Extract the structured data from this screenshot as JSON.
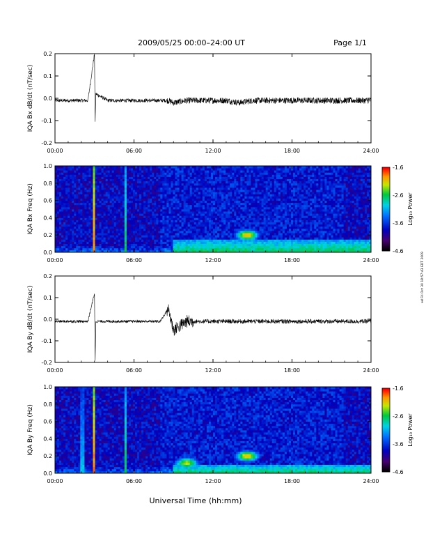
{
  "header": {
    "title": "2009/05/25  00:00–24:00 UT",
    "page": "Page 1/1"
  },
  "side_stamp": "ed Fri Oct 30 18:57:43 EDT 2009",
  "xlabel": "Universal Time (hh:mm)",
  "chart_data": [
    {
      "type": "line",
      "ylabel": "IQA Bx dB/dt (nT/sec)",
      "xlim": [
        0,
        24
      ],
      "ylim": [
        -0.2,
        0.2
      ],
      "xticks": [
        "00:00",
        "06:00",
        "12:00",
        "18:00",
        "24:00"
      ],
      "yticks": [
        "-0.2",
        "-0.1",
        "0.0",
        "0.1",
        "0.2"
      ],
      "series": [
        {
          "x": [
            0,
            1,
            2,
            2.5,
            3.0,
            3.05,
            3.1,
            4,
            5,
            6,
            7,
            8,
            8.6,
            9,
            10,
            11,
            12,
            13,
            14,
            15,
            16,
            17,
            18,
            19,
            20,
            21,
            22,
            23,
            24
          ],
          "y": [
            -0.01,
            -0.01,
            -0.01,
            -0.01,
            0.2,
            -0.11,
            0.02,
            -0.01,
            -0.01,
            -0.01,
            -0.01,
            -0.01,
            -0.01,
            -0.02,
            -0.01,
            -0.01,
            -0.01,
            -0.01,
            -0.02,
            -0.01,
            -0.01,
            -0.01,
            -0.01,
            -0.01,
            -0.01,
            -0.01,
            -0.01,
            -0.01,
            -0.01
          ]
        }
      ]
    },
    {
      "type": "heatmap",
      "ylabel": "IQA Bx Freq (Hz)",
      "xlim": [
        0,
        24
      ],
      "ylim": [
        0.0,
        1.0
      ],
      "xticks": [
        "00:00",
        "06:00",
        "12:00",
        "18:00",
        "24:00"
      ],
      "yticks": [
        "0.0",
        "0.2",
        "0.4",
        "0.6",
        "0.8",
        "1.0"
      ],
      "colorbar": {
        "label": "Log₁₀ Power",
        "range": [
          -4.6,
          -1.6
        ],
        "ticks": [
          "-1.6",
          "-2.6",
          "-3.6",
          "-4.6"
        ]
      },
      "features": [
        {
          "kind": "vertical-line",
          "time": 3.0,
          "level": -1.8
        },
        {
          "kind": "vertical-line",
          "time": 5.4,
          "level": -2.6
        },
        {
          "kind": "blob",
          "time": 14.6,
          "freq": 0.2,
          "level": -2.0
        },
        {
          "kind": "low-freq-band",
          "time_start": 9.0,
          "time_end": 24.0,
          "freq_max": 0.15,
          "level": -2.6
        }
      ]
    },
    {
      "type": "line",
      "ylabel": "IQA By dB/dt (nT/sec)",
      "xlim": [
        0,
        24
      ],
      "ylim": [
        -0.2,
        0.2
      ],
      "xticks": [
        "00:00",
        "06:00",
        "12:00",
        "18:00",
        "24:00"
      ],
      "yticks": [
        "-0.2",
        "-0.1",
        "0.0",
        "0.1",
        "0.2"
      ],
      "series": [
        {
          "x": [
            0,
            1,
            2,
            2.5,
            3.0,
            3.05,
            3.1,
            4,
            5,
            6,
            7,
            8,
            8.6,
            9,
            10,
            11,
            12,
            13,
            14,
            15,
            16,
            17,
            18,
            19,
            20,
            21,
            22,
            23,
            24
          ],
          "y": [
            -0.01,
            -0.01,
            -0.01,
            -0.01,
            0.12,
            -0.2,
            -0.01,
            -0.01,
            -0.01,
            -0.01,
            -0.01,
            -0.01,
            0.05,
            -0.05,
            -0.01,
            -0.01,
            -0.01,
            -0.01,
            -0.01,
            -0.01,
            -0.01,
            -0.01,
            -0.01,
            -0.01,
            -0.01,
            -0.01,
            -0.01,
            -0.01,
            -0.01
          ]
        }
      ]
    },
    {
      "type": "heatmap",
      "ylabel": "IQA By Freq (Hz)",
      "xlim": [
        0,
        24
      ],
      "ylim": [
        0.0,
        1.0
      ],
      "xticks": [
        "00:00",
        "06:00",
        "12:00",
        "18:00",
        "24:00"
      ],
      "yticks": [
        "0.0",
        "0.2",
        "0.4",
        "0.6",
        "0.8",
        "1.0"
      ],
      "colorbar": {
        "label": "Log₁₀ Power",
        "range": [
          -4.6,
          -1.6
        ],
        "ticks": [
          "-1.6",
          "-2.6",
          "-3.6",
          "-4.6"
        ]
      },
      "features": [
        {
          "kind": "vertical-line",
          "time": 3.0,
          "level": -1.8
        },
        {
          "kind": "vertical-line",
          "time": 5.4,
          "level": -2.6
        },
        {
          "kind": "vertical-line",
          "time": 2.1,
          "level": -3.0
        },
        {
          "kind": "blob",
          "time": 10.0,
          "freq": 0.12,
          "level": -2.2
        },
        {
          "kind": "blob",
          "time": 14.6,
          "freq": 0.2,
          "level": -2.0
        },
        {
          "kind": "low-freq-band",
          "time_start": 9.0,
          "time_end": 24.0,
          "freq_max": 0.1,
          "level": -2.6
        }
      ]
    }
  ]
}
